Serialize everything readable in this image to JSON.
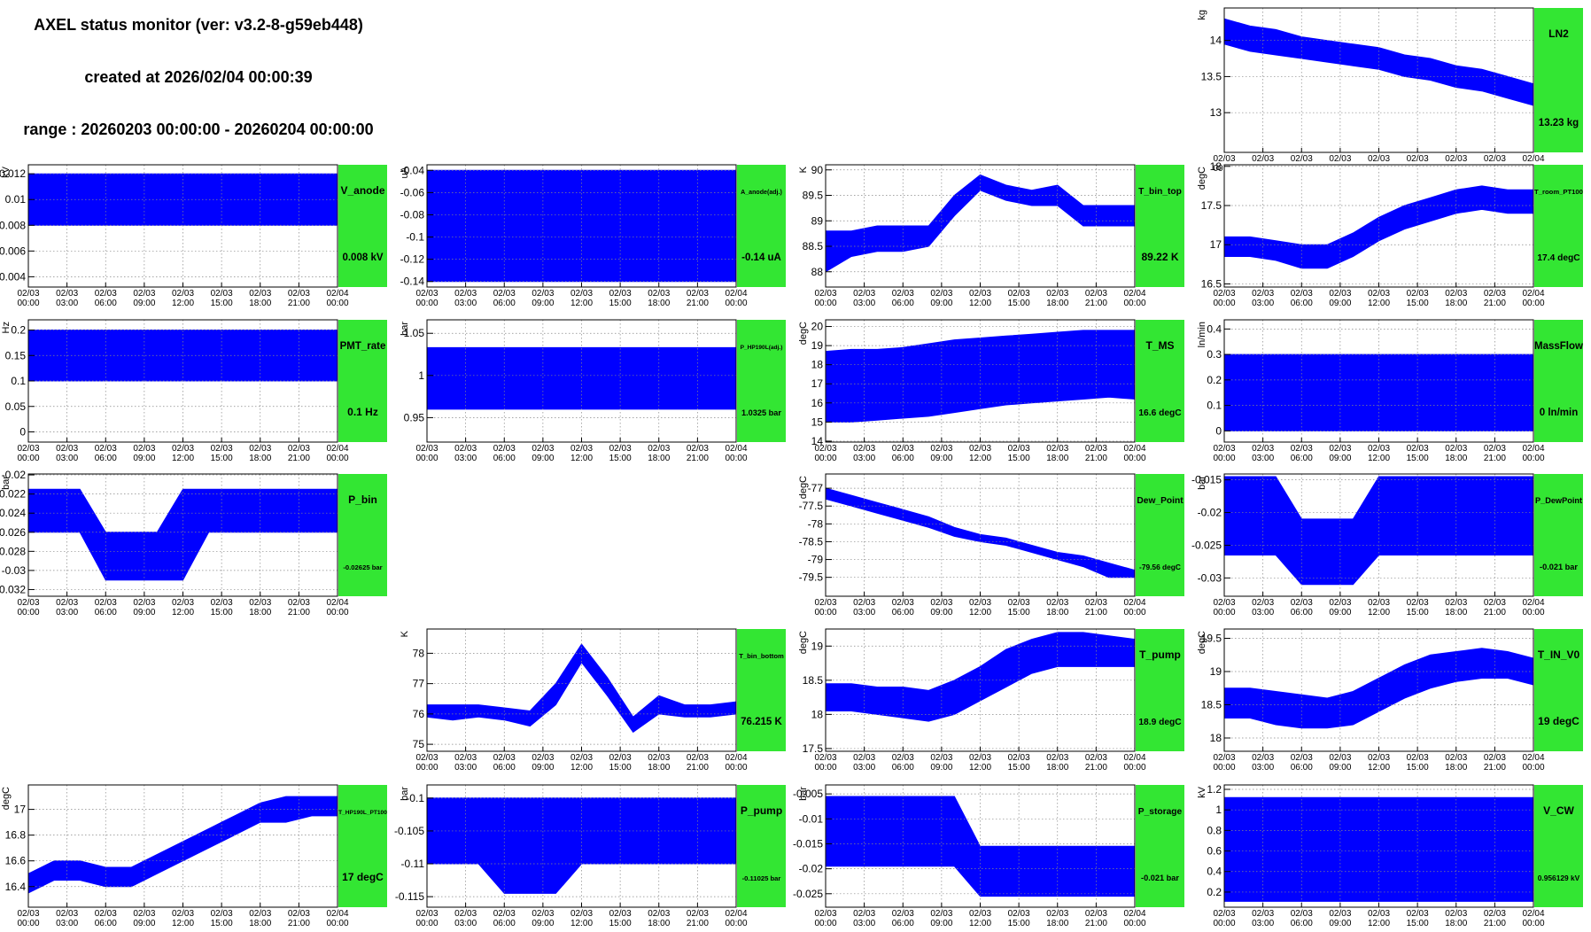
{
  "header": {
    "title": "AXEL status monitor (ver: v3.2-8-g59eb448)",
    "created": "created at 2026/02/04 00:00:39",
    "range": "range : 20260203 00:00:00 - 20260204 00:00:00"
  },
  "time_axis": {
    "xlim": [
      0,
      24
    ],
    "x": [
      0,
      2,
      4,
      6,
      8,
      10,
      12,
      14,
      16,
      18,
      20,
      22,
      24
    ],
    "xticks": [
      {
        "value": 0,
        "label": "02/03 00:00"
      },
      {
        "value": 3,
        "label": "02/03 03:00"
      },
      {
        "value": 6,
        "label": "02/03 06:00"
      },
      {
        "value": 9,
        "label": "02/03 09:00"
      },
      {
        "value": 12,
        "label": "02/03 12:00"
      },
      {
        "value": 15,
        "label": "02/03 15:00"
      },
      {
        "value": 18,
        "label": "02/03 18:00"
      },
      {
        "value": 21,
        "label": "02/03 21:00"
      },
      {
        "value": 24,
        "label": "02/04 00:00"
      }
    ]
  },
  "chart_data": [
    {
      "type": "band",
      "title": "LN2",
      "unit": "kg",
      "reading": "13.23 kg",
      "color": "#0000ff",
      "box_color": "#33e633",
      "grid": true,
      "ylim": [
        12.45,
        14.45
      ],
      "yticks": [
        13,
        13.5,
        14
      ],
      "lower": [
        13.95,
        13.85,
        13.8,
        13.75,
        13.7,
        13.65,
        13.6,
        13.5,
        13.45,
        13.35,
        13.3,
        13.2,
        13.1
      ],
      "upper": [
        14.3,
        14.2,
        14.15,
        14.05,
        14.0,
        13.95,
        13.9,
        13.8,
        13.75,
        13.65,
        13.6,
        13.5,
        13.4
      ]
    },
    {
      "type": "band",
      "title": "V_anode",
      "unit": "kV",
      "reading": "0.008 kV",
      "color": "#0000ff",
      "box_color": "#33e633",
      "grid": true,
      "ylim": [
        0.0032,
        0.0127
      ],
      "yticks": [
        0.004,
        0.006,
        0.008,
        0.01,
        0.012
      ],
      "lower": [
        0.008,
        0.008,
        0.008,
        0.008,
        0.008,
        0.008,
        0.008,
        0.008,
        0.008,
        0.008,
        0.008,
        0.008,
        0.008
      ],
      "upper": [
        0.012,
        0.012,
        0.012,
        0.012,
        0.012,
        0.012,
        0.012,
        0.012,
        0.012,
        0.012,
        0.012,
        0.012,
        0.012
      ]
    },
    {
      "type": "band",
      "title": "A_anode(adj.)",
      "unit": "uA",
      "reading": "-0.14 uA",
      "color": "#0000ff",
      "box_color": "#33e633",
      "grid": true,
      "ylim": [
        -0.145,
        -0.035
      ],
      "yticks": [
        -0.14,
        -0.12,
        -0.1,
        -0.08,
        -0.06,
        -0.04
      ],
      "lower": [
        -0.14,
        -0.14,
        -0.14,
        -0.14,
        -0.14,
        -0.14,
        -0.14,
        -0.14,
        -0.14,
        -0.14,
        -0.14,
        -0.14,
        -0.14
      ],
      "upper": [
        -0.04,
        -0.04,
        -0.04,
        -0.04,
        -0.04,
        -0.04,
        -0.04,
        -0.04,
        -0.04,
        -0.04,
        -0.04,
        -0.04,
        -0.04
      ]
    },
    {
      "type": "band",
      "title": "T_bin_top",
      "unit": "K",
      "reading": "89.22 K",
      "color": "#0000ff",
      "box_color": "#33e633",
      "grid": true,
      "ylim": [
        87.7,
        90.1
      ],
      "yticks": [
        88,
        88.5,
        89,
        89.5,
        90
      ],
      "lower": [
        88.0,
        88.3,
        88.4,
        88.4,
        88.5,
        89.1,
        89.6,
        89.4,
        89.3,
        89.3,
        88.9,
        88.9,
        88.9
      ],
      "upper": [
        88.8,
        88.8,
        88.9,
        88.9,
        88.9,
        89.5,
        89.9,
        89.7,
        89.6,
        89.7,
        89.3,
        89.3,
        89.3
      ]
    },
    {
      "type": "band",
      "title": "T_room_PT100",
      "unit": "degC",
      "reading": "17.4 degC",
      "color": "#0000ff",
      "box_color": "#33e633",
      "grid": true,
      "ylim": [
        16.46,
        18.02
      ],
      "yticks": [
        16.5,
        17,
        17.5,
        18
      ],
      "lower": [
        16.85,
        16.85,
        16.8,
        16.7,
        16.7,
        16.85,
        17.05,
        17.2,
        17.3,
        17.4,
        17.45,
        17.4,
        17.4
      ],
      "upper": [
        17.1,
        17.1,
        17.05,
        17.0,
        17.0,
        17.15,
        17.35,
        17.5,
        17.6,
        17.7,
        17.75,
        17.7,
        17.7
      ]
    },
    {
      "type": "band",
      "title": "PMT_rate",
      "unit": "Hz",
      "reading": "0.1 Hz",
      "color": "#0000ff",
      "box_color": "#33e633",
      "grid": true,
      "ylim": [
        -0.02,
        0.22
      ],
      "yticks": [
        0,
        0.05,
        0.1,
        0.15,
        0.2
      ],
      "lower": [
        0.1,
        0.1,
        0.1,
        0.1,
        0.1,
        0.1,
        0.1,
        0.1,
        0.1,
        0.1,
        0.1,
        0.1,
        0.1
      ],
      "upper": [
        0.2,
        0.2,
        0.2,
        0.2,
        0.2,
        0.2,
        0.2,
        0.2,
        0.2,
        0.2,
        0.2,
        0.2,
        0.2
      ]
    },
    {
      "type": "band",
      "title": "P_HP190L(adj.)",
      "unit": "bar",
      "reading": "1.0325 bar",
      "color": "#0000ff",
      "box_color": "#33e633",
      "grid": true,
      "ylim": [
        0.921,
        1.066
      ],
      "yticks": [
        0.95,
        1,
        1.05
      ],
      "lower": [
        0.96,
        0.96,
        0.96,
        0.96,
        0.96,
        0.96,
        0.96,
        0.96,
        0.96,
        0.96,
        0.96,
        0.96,
        0.96
      ],
      "upper": [
        1.033,
        1.033,
        1.033,
        1.033,
        1.033,
        1.033,
        1.033,
        1.033,
        1.033,
        1.033,
        1.033,
        1.033,
        1.033
      ]
    },
    {
      "type": "band",
      "title": "T_MS",
      "unit": "degC",
      "reading": "16.6 degC",
      "color": "#0000ff",
      "box_color": "#33e633",
      "grid": true,
      "ylim": [
        13.95,
        20.35
      ],
      "yticks": [
        14,
        15,
        16,
        17,
        18,
        19,
        20
      ],
      "lower": [
        15.0,
        15.0,
        15.1,
        15.2,
        15.3,
        15.5,
        15.7,
        15.9,
        16.0,
        16.1,
        16.2,
        16.3,
        16.2
      ],
      "upper": [
        18.7,
        18.8,
        18.8,
        18.9,
        19.1,
        19.3,
        19.4,
        19.5,
        19.6,
        19.7,
        19.8,
        19.8,
        19.8
      ]
    },
    {
      "type": "band",
      "title": "MassFlow",
      "unit": "ln/min",
      "reading": "0 ln/min",
      "color": "#0000ff",
      "box_color": "#33e633",
      "grid": true,
      "ylim": [
        -0.044,
        0.436
      ],
      "yticks": [
        0,
        0.1,
        0.2,
        0.3,
        0.4
      ],
      "lower": [
        0,
        0,
        0,
        0,
        0,
        0,
        0,
        0,
        0,
        0,
        0,
        0,
        0
      ],
      "upper": [
        0.3,
        0.3,
        0.3,
        0.3,
        0.3,
        0.3,
        0.3,
        0.3,
        0.3,
        0.3,
        0.3,
        0.3,
        0.3
      ]
    },
    {
      "type": "band",
      "title": "P_bin",
      "unit": "bar",
      "reading": "-0.02625 bar",
      "color": "#0000ff",
      "box_color": "#33e633",
      "grid": true,
      "ylim": [
        -0.0327,
        -0.0199
      ],
      "yticks": [
        -0.032,
        -0.03,
        -0.028,
        -0.026,
        -0.024,
        -0.022,
        -0.02
      ],
      "lower": [
        -0.026,
        -0.026,
        -0.026,
        -0.031,
        -0.031,
        -0.031,
        -0.031,
        -0.026,
        -0.026,
        -0.026,
        -0.026,
        -0.026,
        -0.026
      ],
      "upper": [
        -0.0215,
        -0.0215,
        -0.0215,
        -0.026,
        -0.026,
        -0.026,
        -0.0215,
        -0.0215,
        -0.0215,
        -0.0215,
        -0.0215,
        -0.0215,
        -0.0215
      ]
    },
    {
      "type": "band",
      "title": "Dew_Point",
      "unit": "degC",
      "reading": "-79.56 degC",
      "color": "#0000ff",
      "box_color": "#33e633",
      "grid": true,
      "ylim": [
        -80.03,
        -76.6
      ],
      "yticks": [
        -79.5,
        -79,
        -78.5,
        -78,
        -77.5,
        -77
      ],
      "lower": [
        -77.3,
        -77.5,
        -77.7,
        -77.9,
        -78.1,
        -78.35,
        -78.5,
        -78.6,
        -78.8,
        -79.0,
        -79.2,
        -79.5,
        -79.5
      ],
      "upper": [
        -77.0,
        -77.2,
        -77.4,
        -77.6,
        -77.8,
        -78.1,
        -78.3,
        -78.4,
        -78.6,
        -78.8,
        -78.9,
        -79.1,
        -79.3
      ]
    },
    {
      "type": "band",
      "title": "P_DewPoint",
      "unit": "bar",
      "reading": "-0.021 bar",
      "color": "#0000ff",
      "box_color": "#33e633",
      "grid": true,
      "ylim": [
        -0.0328,
        -0.0141
      ],
      "yticks": [
        -0.03,
        -0.025,
        -0.02,
        -0.015
      ],
      "lower": [
        -0.0265,
        -0.0265,
        -0.0265,
        -0.031,
        -0.031,
        -0.031,
        -0.0265,
        -0.0265,
        -0.0265,
        -0.0265,
        -0.0265,
        -0.0265,
        -0.0265
      ],
      "upper": [
        -0.0145,
        -0.0145,
        -0.0145,
        -0.021,
        -0.021,
        -0.021,
        -0.0145,
        -0.0145,
        -0.0145,
        -0.0145,
        -0.0145,
        -0.0145,
        -0.0145
      ]
    },
    {
      "type": "band",
      "title": "T_bin_bottom",
      "unit": "K",
      "reading": "76.215 K",
      "color": "#0000ff",
      "box_color": "#33e633",
      "grid": true,
      "ylim": [
        74.77,
        78.8
      ],
      "yticks": [
        75,
        76,
        77,
        78
      ],
      "lower": [
        75.9,
        75.8,
        75.9,
        75.8,
        75.6,
        76.3,
        77.7,
        76.6,
        75.4,
        76.0,
        75.9,
        75.9,
        76.0
      ],
      "upper": [
        76.3,
        76.3,
        76.3,
        76.2,
        76.1,
        77.0,
        78.3,
        77.2,
        75.9,
        76.6,
        76.3,
        76.3,
        76.4
      ]
    },
    {
      "type": "band",
      "title": "T_pump",
      "unit": "degC",
      "reading": "18.9 degC",
      "color": "#0000ff",
      "box_color": "#33e633",
      "grid": true,
      "ylim": [
        17.46,
        19.25
      ],
      "yticks": [
        17.5,
        18,
        18.5,
        19
      ],
      "lower": [
        18.05,
        18.05,
        18.0,
        17.95,
        17.9,
        18.0,
        18.2,
        18.4,
        18.6,
        18.7,
        18.7,
        18.7,
        18.7
      ],
      "upper": [
        18.45,
        18.45,
        18.4,
        18.4,
        18.35,
        18.5,
        18.7,
        18.95,
        19.1,
        19.2,
        19.2,
        19.15,
        19.1
      ]
    },
    {
      "type": "band",
      "title": "T_IN_V0",
      "unit": "degC",
      "reading": "19 degC",
      "color": "#0000ff",
      "box_color": "#33e633",
      "grid": true,
      "ylim": [
        17.8,
        19.64
      ],
      "yticks": [
        18,
        18.5,
        19,
        19.5
      ],
      "lower": [
        18.3,
        18.3,
        18.2,
        18.15,
        18.15,
        18.2,
        18.4,
        18.6,
        18.75,
        18.85,
        18.9,
        18.9,
        18.8
      ],
      "upper": [
        18.75,
        18.75,
        18.7,
        18.65,
        18.6,
        18.7,
        18.9,
        19.1,
        19.25,
        19.3,
        19.35,
        19.3,
        19.2
      ]
    },
    {
      "type": "band",
      "title": "T_HP190L_PT100",
      "unit": "degC",
      "reading": "17 degC",
      "color": "#0000ff",
      "box_color": "#33e633",
      "grid": true,
      "ylim": [
        16.24,
        17.19
      ],
      "yticks": [
        16.4,
        16.6,
        16.8,
        17
      ],
      "lower": [
        16.35,
        16.45,
        16.45,
        16.4,
        16.4,
        16.5,
        16.6,
        16.7,
        16.8,
        16.9,
        16.9,
        16.95,
        16.95
      ],
      "upper": [
        16.5,
        16.6,
        16.6,
        16.55,
        16.55,
        16.65,
        16.75,
        16.85,
        16.95,
        17.05,
        17.1,
        17.1,
        17.1
      ]
    },
    {
      "type": "band",
      "title": "P_pump",
      "unit": "bar",
      "reading": "-0.11025 bar",
      "color": "#0000ff",
      "box_color": "#33e633",
      "grid": true,
      "ylim": [
        -0.1166,
        -0.098
      ],
      "yticks": [
        -0.115,
        -0.11,
        -0.105,
        -0.1
      ],
      "lower": [
        -0.11,
        -0.11,
        -0.11,
        -0.1145,
        -0.1145,
        -0.1145,
        -0.11,
        -0.11,
        -0.11,
        -0.11,
        -0.11,
        -0.11,
        -0.11
      ],
      "upper": [
        -0.1,
        -0.1,
        -0.1,
        -0.1,
        -0.1,
        -0.1,
        -0.1,
        -0.1,
        -0.1,
        -0.1,
        -0.1,
        -0.1,
        -0.1
      ]
    },
    {
      "type": "band",
      "title": "P_storage",
      "unit": "bar",
      "reading": "-0.021 bar",
      "color": "#0000ff",
      "box_color": "#33e633",
      "grid": true,
      "ylim": [
        -0.0277,
        -0.0032
      ],
      "yticks": [
        -0.025,
        -0.02,
        -0.015,
        -0.01,
        -0.005
      ],
      "lower": [
        -0.0195,
        -0.0195,
        -0.0195,
        -0.0195,
        -0.0195,
        -0.0195,
        -0.0255,
        -0.0255,
        -0.0255,
        -0.0255,
        -0.0255,
        -0.0255,
        -0.0255
      ],
      "upper": [
        -0.0055,
        -0.0055,
        -0.0055,
        -0.0055,
        -0.0055,
        -0.0055,
        -0.0155,
        -0.0155,
        -0.0155,
        -0.0155,
        -0.0155,
        -0.0155,
        -0.0155
      ]
    },
    {
      "type": "band",
      "title": "V_CW",
      "unit": "kV",
      "reading": "0.956129 kV",
      "color": "#0000ff",
      "box_color": "#33e633",
      "grid": true,
      "ylim": [
        0.0527,
        1.243
      ],
      "yticks": [
        0.2,
        0.4,
        0.6,
        0.8,
        1,
        1.2
      ],
      "lower": [
        0.11,
        0.11,
        0.11,
        0.11,
        0.11,
        0.11,
        0.11,
        0.11,
        0.11,
        0.11,
        0.11,
        0.11,
        0.11
      ],
      "upper": [
        1.12,
        1.12,
        1.12,
        1.12,
        1.12,
        1.12,
        1.12,
        1.12,
        1.12,
        1.12,
        1.12,
        1.12,
        1.12
      ]
    }
  ]
}
